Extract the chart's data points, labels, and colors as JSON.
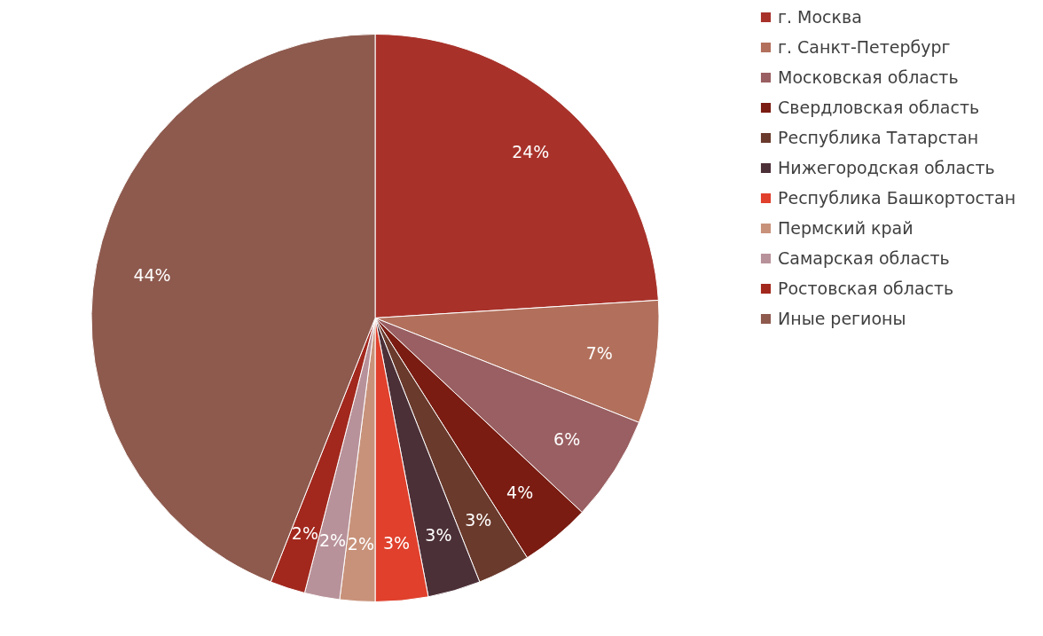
{
  "chart_data": {
    "type": "pie",
    "categories": [
      "г. Москва",
      "г. Санкт-Петербург",
      "Московская область",
      "Свердловская область",
      "Республика Татарстан",
      "Нижегородская область",
      "Республика Башкортостан",
      "Пермский край",
      "Самарская область",
      "Ростовская область",
      "Иные регионы"
    ],
    "values": [
      24,
      7,
      6,
      4,
      3,
      3,
      3,
      2,
      2,
      2,
      44
    ],
    "value_labels": [
      "24%",
      "7%",
      "6%",
      "4%",
      "3%",
      "3%",
      "3%",
      "2%",
      "2%",
      "2%",
      "44%"
    ],
    "colors": [
      "#a8322a",
      "#b2705c",
      "#9a5f62",
      "#7a1c12",
      "#6a3a2c",
      "#4c3038",
      "#e0402c",
      "#c8927a",
      "#b8929a",
      "#a2281e",
      "#8e5a4e"
    ],
    "legend": "right"
  }
}
